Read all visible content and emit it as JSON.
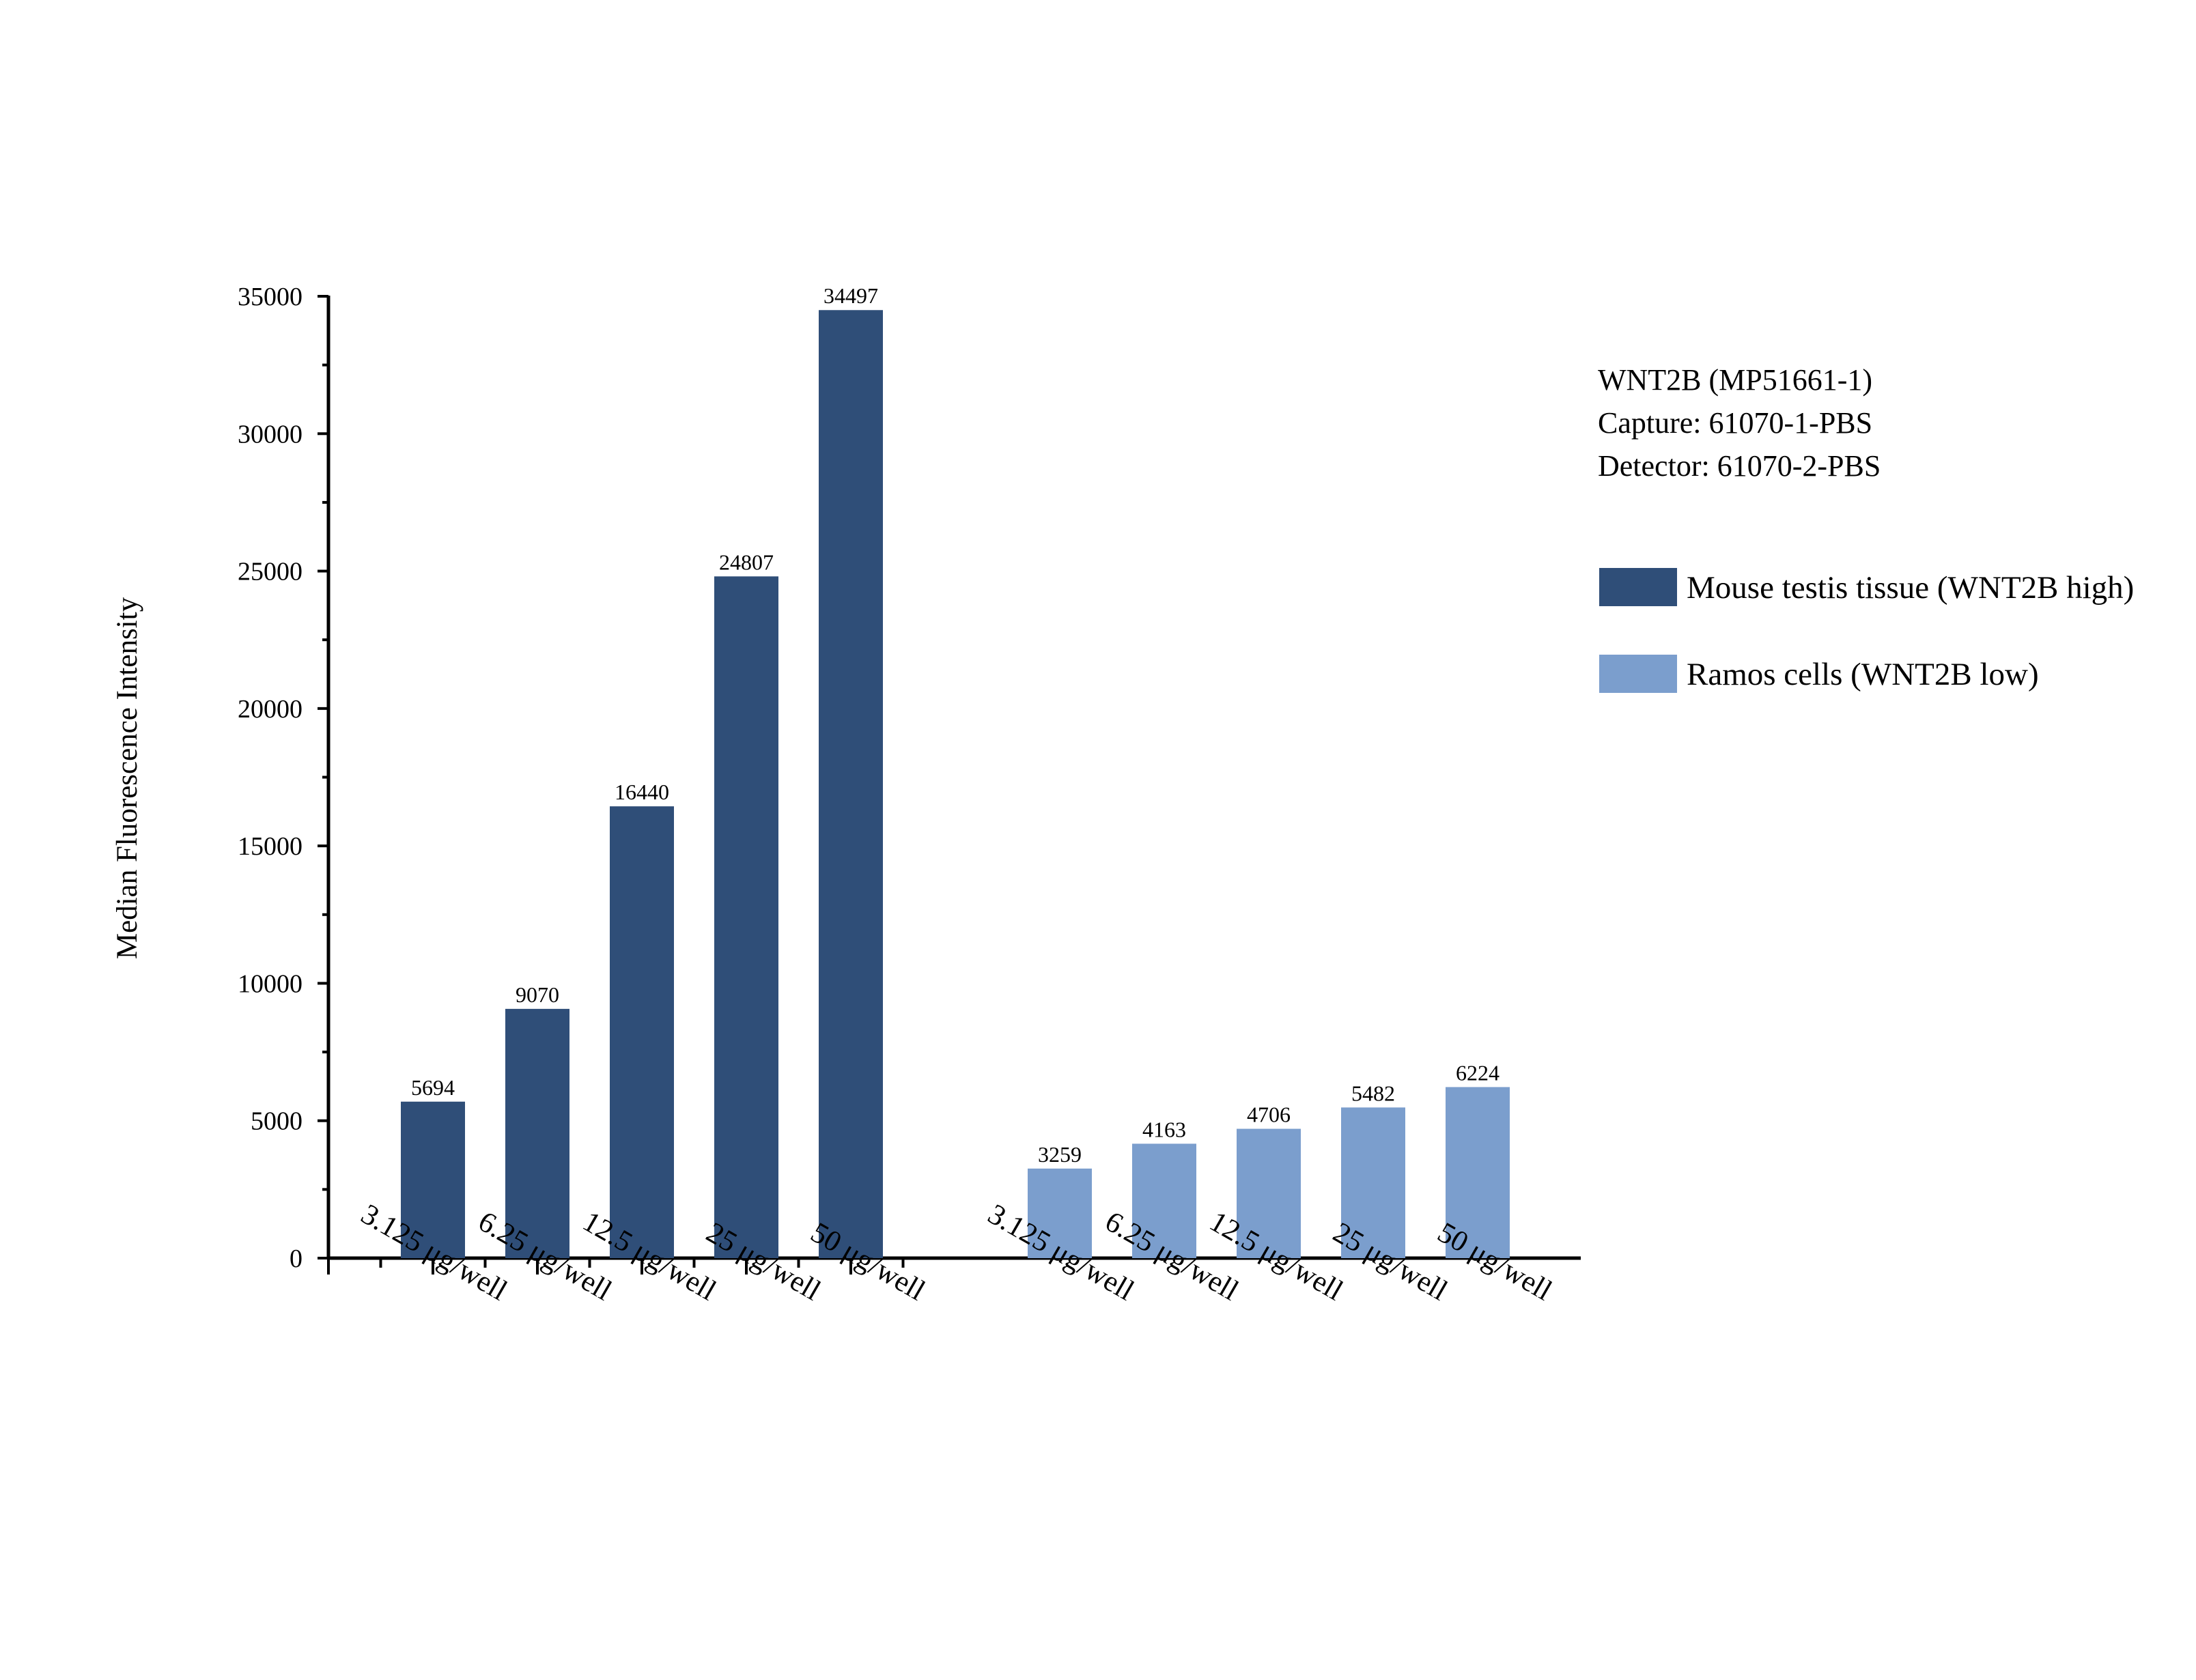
{
  "chart_data": {
    "type": "bar",
    "ylabel": "Median Fluorescence Intensity",
    "xlabel": "",
    "ylim": [
      0,
      35000
    ],
    "yticks": [
      0,
      5000,
      10000,
      15000,
      20000,
      25000,
      30000,
      35000
    ],
    "grid": false,
    "legend_position": "right",
    "info_lines": [
      "WNT2B (MP51661-1)",
      "Capture: 61070-1-PBS",
      "Detector: 61070-2-PBS"
    ],
    "groups": [
      {
        "name": "Mouse testis tissue (WNT2B high)",
        "color": "#2f4e78",
        "categories": [
          "3.125 μg/well",
          "6.25 μg/well",
          "12.5 μg/well",
          "25 μg/well",
          "50 μg/well"
        ],
        "values": [
          5694,
          9070,
          16440,
          24807,
          34497
        ]
      },
      {
        "name": "Ramos cells (WNT2B low)",
        "color": "#7b9ecd",
        "categories": [
          "3.125 μg/well",
          "6.25 μg/well",
          "12.5 μg/well",
          "25 μg/well",
          "50 μg/well"
        ],
        "values": [
          3259,
          4163,
          4706,
          5482,
          6224
        ]
      }
    ]
  }
}
